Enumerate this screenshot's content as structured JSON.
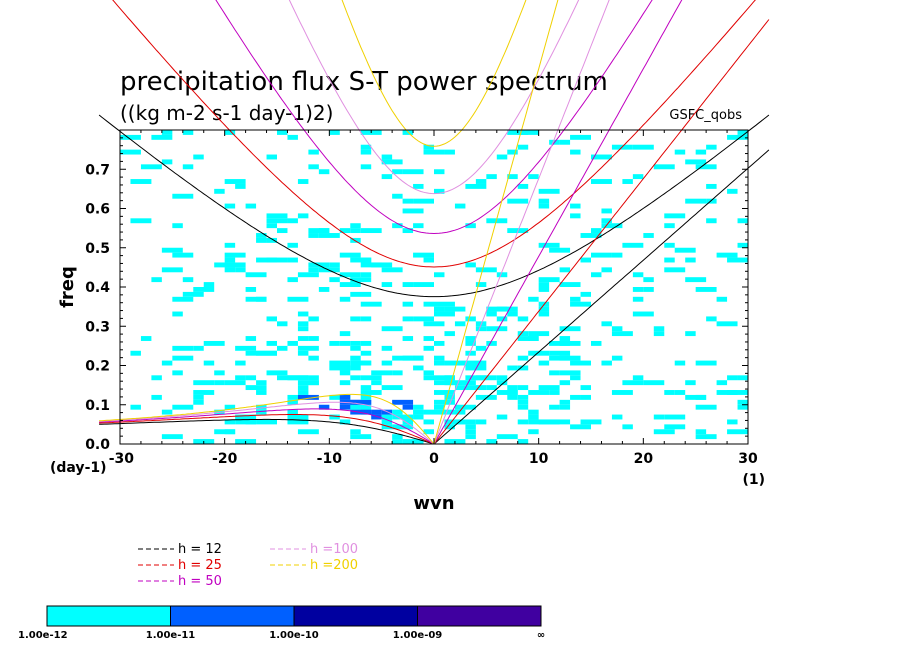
{
  "chart_data": {
    "type": "heatmap",
    "title": "precipitation flux S-T power spectrum",
    "subtitle": "((kg m-2 s-1 day-1)2)",
    "dataset_label": "GSFC_qobs",
    "xlabel": "wvn",
    "ylabel": "freq",
    "x_unit": "(1)",
    "y_unit": "(day-1)",
    "xlim": [
      -30,
      30
    ],
    "ylim": [
      0,
      0.8
    ],
    "x_ticks": [
      -30,
      -20,
      -10,
      0,
      10,
      20,
      30
    ],
    "y_ticks": [
      0.0,
      0.1,
      0.2,
      0.3,
      0.4,
      0.5,
      0.6,
      0.7
    ],
    "x_tick_labels": [
      "-30",
      "-20",
      "-10",
      "0",
      "10",
      "20",
      "30"
    ],
    "y_tick_labels": [
      "0.0",
      "0.1",
      "0.2",
      "0.3",
      "0.4",
      "0.5",
      "0.6",
      "0.7"
    ],
    "dispersion_curves": [
      {
        "label": "h = 12",
        "color": "#000000"
      },
      {
        "label": "h = 25",
        "color": "#e00000"
      },
      {
        "label": "h = 50",
        "color": "#c000c0"
      },
      {
        "label": "h =100",
        "color": "#e090e0"
      },
      {
        "label": "h =200",
        "color": "#f0d000"
      }
    ],
    "colorbar": {
      "colors": [
        "#00ffff",
        "#0060ff",
        "#0000a0",
        "#4000a0"
      ],
      "labels": [
        "1.00e-12",
        "1.00e-11",
        "1.00e-10",
        "1.00e-09",
        "∞"
      ]
    }
  }
}
